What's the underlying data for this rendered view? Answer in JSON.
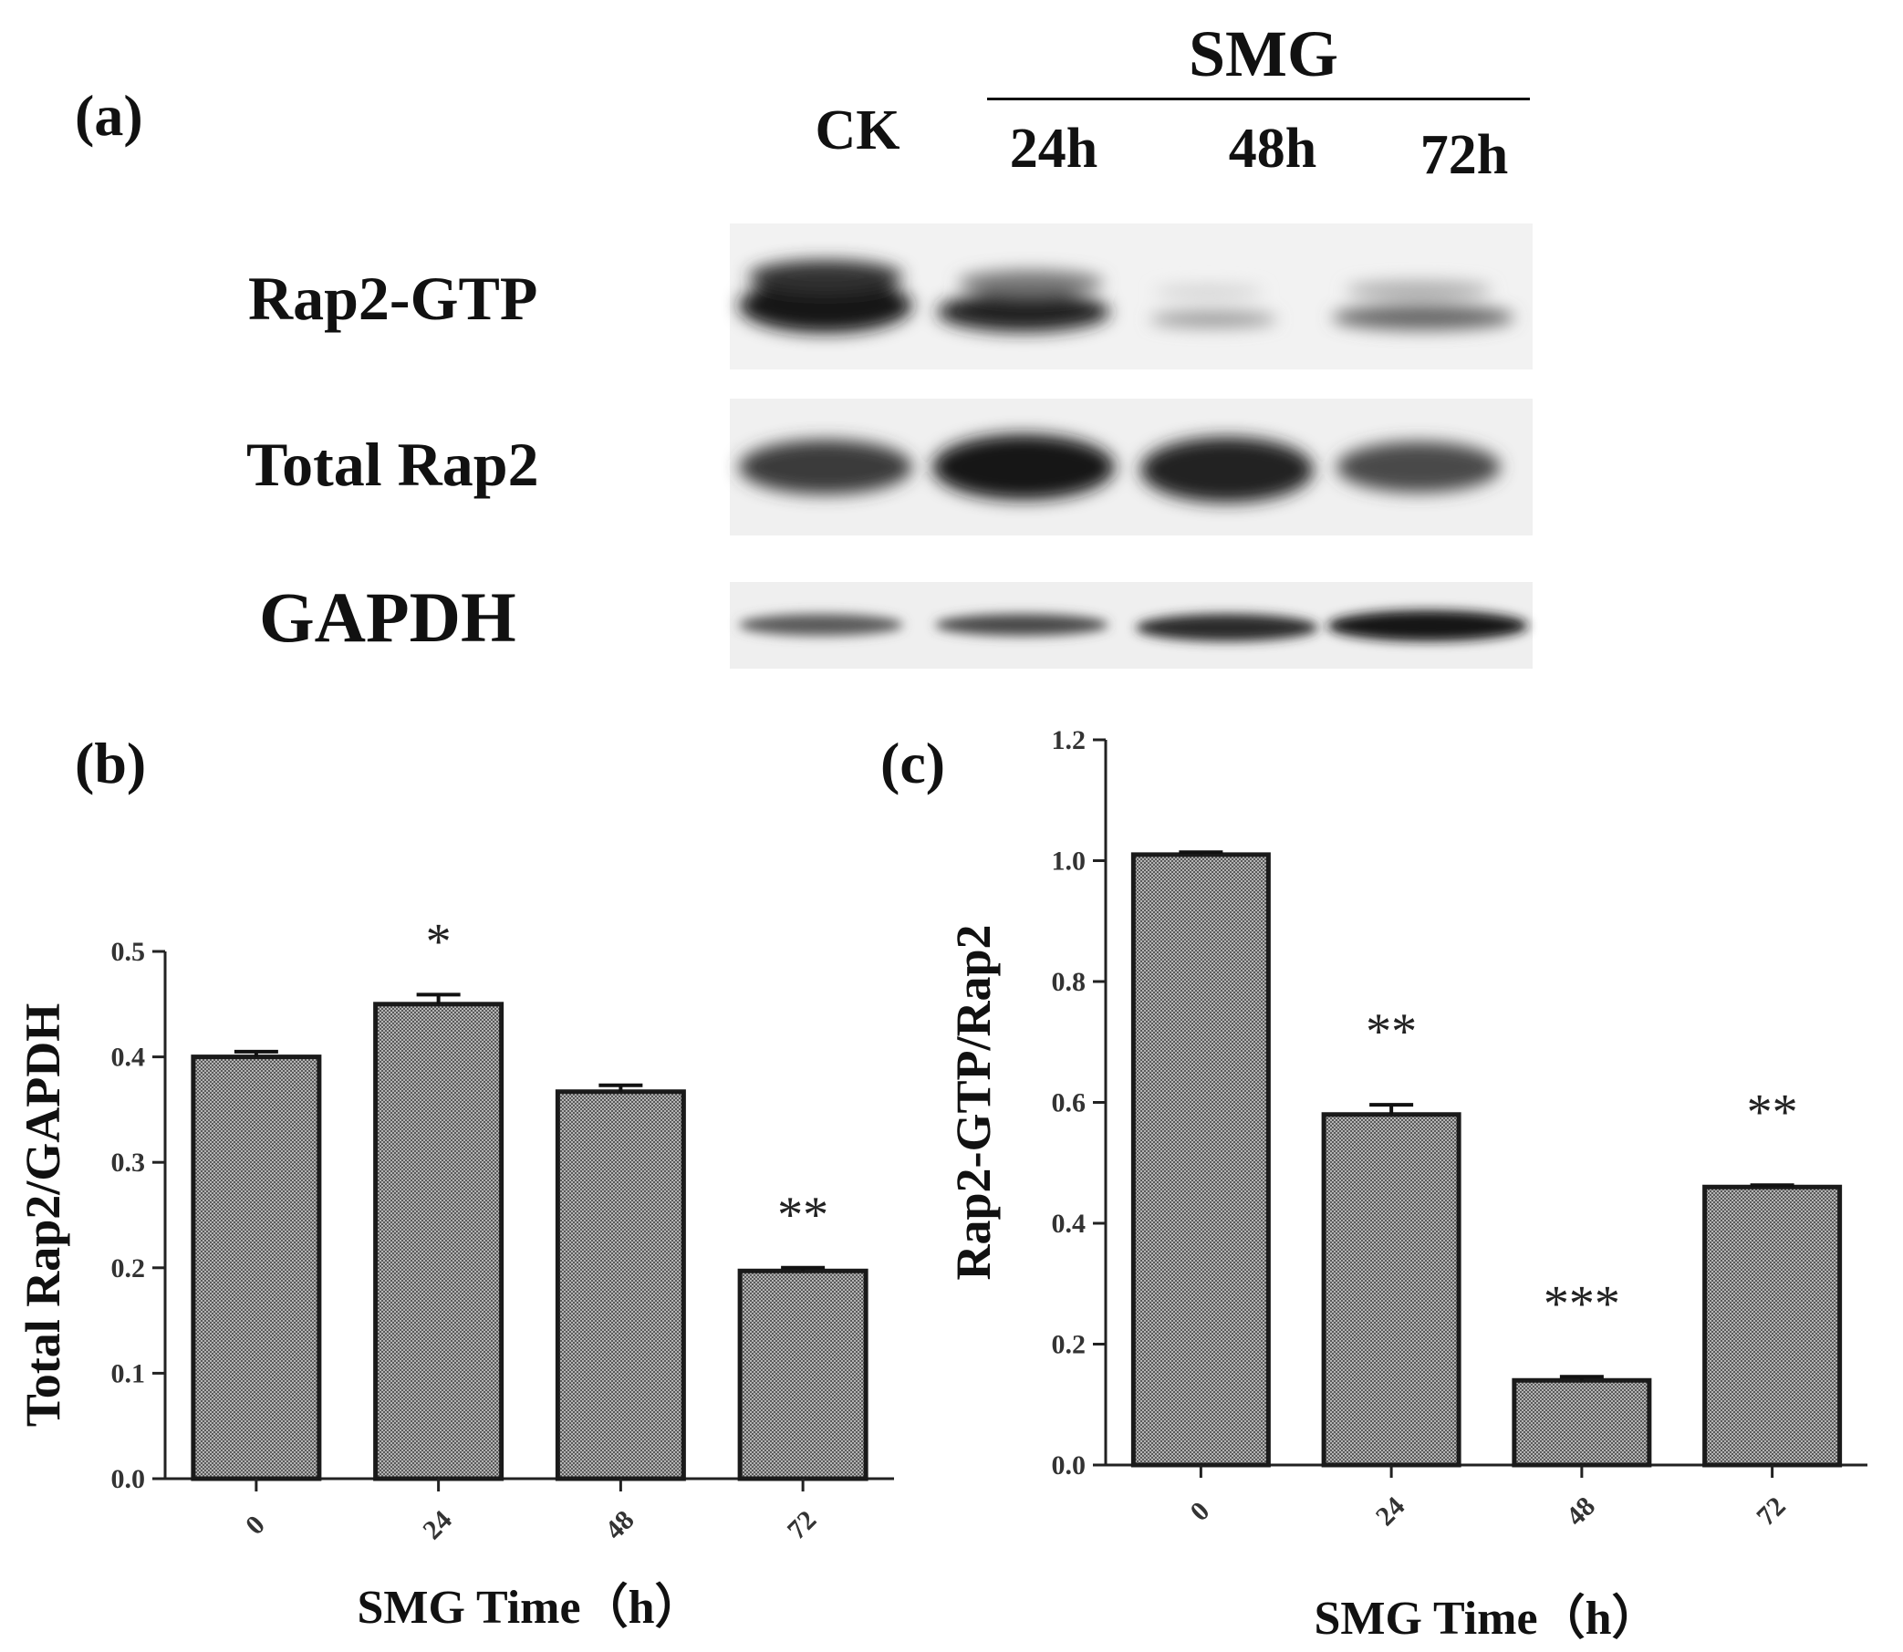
{
  "panel_a": {
    "label": "(a)",
    "group_label": "SMG",
    "lane_labels": [
      "CK",
      "24h",
      "48h",
      "72h"
    ],
    "row_labels": [
      "Rap2-GTP",
      "Total Rap2",
      "GAPDH"
    ]
  },
  "chart_data": [
    {
      "type": "bar",
      "panel": "(b)",
      "categories": [
        "0",
        "24",
        "48",
        "72"
      ],
      "values": [
        0.4,
        0.45,
        0.367,
        0.197
      ],
      "errors": [
        0.005,
        0.009,
        0.006,
        0.003
      ],
      "significance": [
        "",
        "*",
        "",
        "**"
      ],
      "title": "",
      "xlabel": "SMG Time（h）",
      "ylabel": "Total Rap2/GAPDH",
      "ylim": [
        0,
        0.5
      ],
      "yticks": [
        "0.0",
        "0.1",
        "0.2",
        "0.3",
        "0.4",
        "0.5"
      ],
      "grid": false,
      "bar_color": "#8a8a8a"
    },
    {
      "type": "bar",
      "panel": "(c)",
      "categories": [
        "0",
        "24",
        "48",
        "72"
      ],
      "values": [
        1.01,
        0.58,
        0.14,
        0.46
      ],
      "errors": [
        0.004,
        0.016,
        0.006,
        0.003
      ],
      "significance": [
        "",
        "**",
        "***",
        "**"
      ],
      "title": "",
      "xlabel": "SMG Time（h）",
      "ylabel": "Rap2-GTP/Rap2",
      "ylim": [
        0,
        1.2
      ],
      "yticks": [
        "0.0",
        "0.2",
        "0.4",
        "0.6",
        "0.8",
        "1.0",
        "1.2"
      ],
      "grid": false,
      "bar_color": "#8a8a8a"
    }
  ]
}
